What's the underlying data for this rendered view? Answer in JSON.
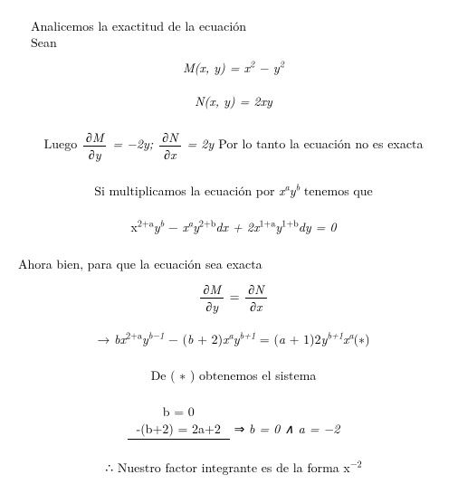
{
  "line1": "Analicemos la exactitud de la ecuación",
  "line2": "Sean",
  "eq_M_lhs": "M(x, y) = ",
  "eq_M_rhs_base1": "x",
  "eq_M_rhs_exp1": "2",
  "eq_M_minus": " − ",
  "eq_M_rhs_base2": "y",
  "eq_M_rhs_exp2": "2",
  "eq_N": "N(x, y) = 2xy",
  "luego": "Luego ",
  "dM_num": "∂M",
  "dM_den": "∂y",
  "eqneg2y": " = −2y; ",
  "dN_num": "∂N",
  "dN_den": "∂x",
  "eq2y": " = 2y ",
  "no_exacta": "Por lo tanto la ecuación no es exacta",
  "si_mult_1": "Si multiplicamos la ecuación por ",
  "xa": "x",
  "a": "a",
  "yb": "y",
  "b": "b",
  "si_mult_2": " tenemos que",
  "eq_mult_pre": "x",
  "exp_2pa": "2+a",
  "y": "y",
  "exp_b": "b",
  "minus": " − ",
  "x": "x",
  "exp_a": "a",
  "exp_2pb": "2+b",
  "dx_plus": "dx + 2",
  "exp_1pa": "1+a",
  "exp_1pb": "1+b",
  "dy_eq0": "dy = 0",
  "ahora": "Ahora bien, para que la ecuación sea exacta",
  "arrow": "→ ",
  "b_lc": "b",
  "exp_bm1": "b−1",
  "minus_paren": " − (",
  "plus2": " + 2)",
  "exp_bp1": "b+1",
  "eq_rhs": " = (",
  "a_lc": "a",
  "plus1_2": " + 1)2",
  "star": "(∗)",
  "de_star": "De ( ∗ ) obtenemos el sistema",
  "sys1": "b = 0",
  "sys2": "-(b+2) = 2a+2",
  "implies": " ⇒ ",
  "sys_res": "b = 0 ∧ a = −2",
  "therefore": "∴ ",
  "nuestro": "Nuestro factor integrante es de la forma x",
  "exp_neg2": "−2"
}
